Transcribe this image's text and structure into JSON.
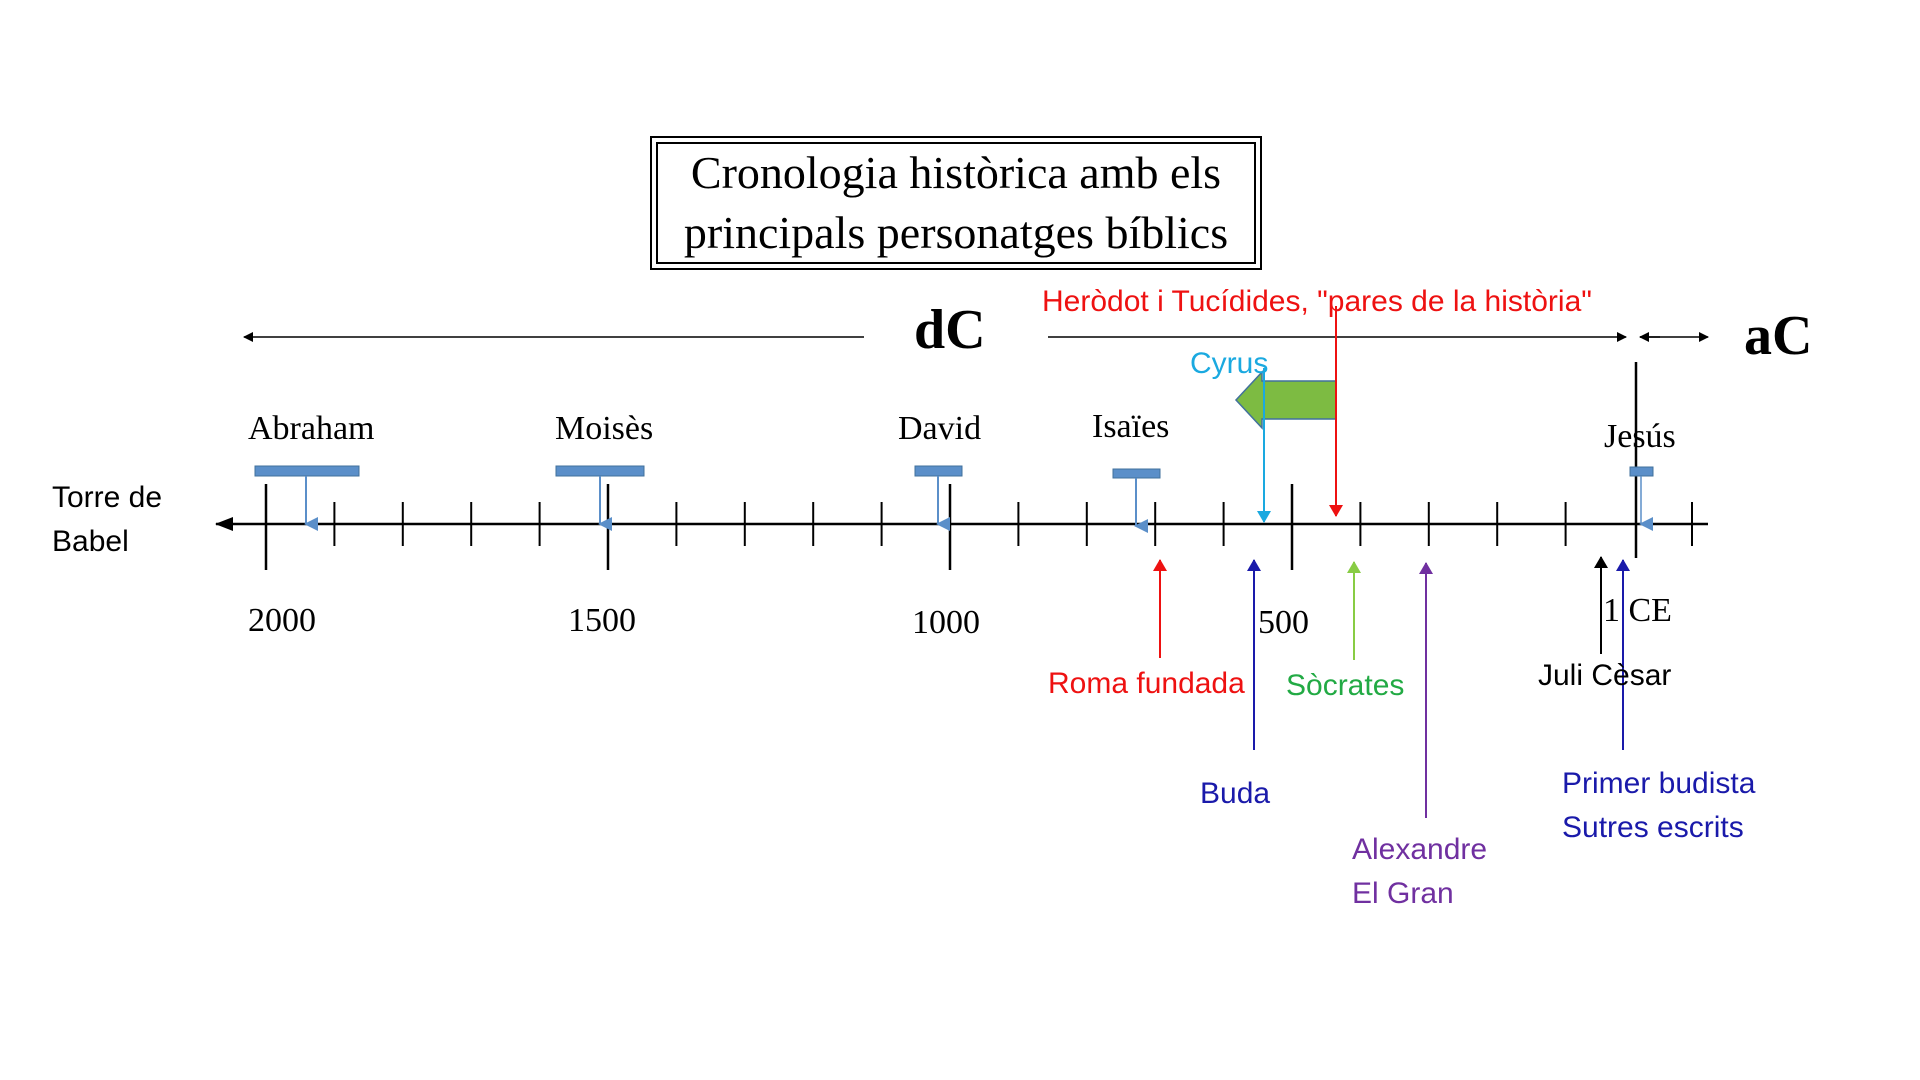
{
  "title": {
    "line1": "Cronologia històrica amb els",
    "line2": "principals personatges bíblics"
  },
  "eras": {
    "dc": "dC",
    "ac": "aC"
  },
  "left_label": {
    "line1": "Torre de",
    "line2": "Babel"
  },
  "year_labels": {
    "y2000": "2000",
    "y1500": "1500",
    "y1000": "1000",
    "y500": "500",
    "y1ce": "1 CE"
  },
  "persons": {
    "abraham": "Abraham",
    "moises": "Moisès",
    "david": "David",
    "isaies": "Isaïes",
    "jesus": "Jesús"
  },
  "events": {
    "herodot": "Heròdot i Tucídides, \"pares de la història\"",
    "cyrus": "Cyrus",
    "roma": "Roma fundada",
    "socrates": "Sòcrates",
    "juli_cesar": "Juli Cèsar",
    "buda": "Buda",
    "alexandre_1": "Alexandre",
    "alexandre_2": "El Gran",
    "budista_1": "Primer budista",
    "budista_2": "Sutres escrits"
  },
  "colors": {
    "line": "#000000",
    "bar": "#5b8fc9",
    "red": "#ee1111",
    "cyan": "#1aa9e0",
    "green": "#22aa44",
    "light_green": "#88cc44",
    "blue": "#1a1aaa",
    "purple": "#7030a0",
    "big_arrow": "#7dbb42"
  }
}
